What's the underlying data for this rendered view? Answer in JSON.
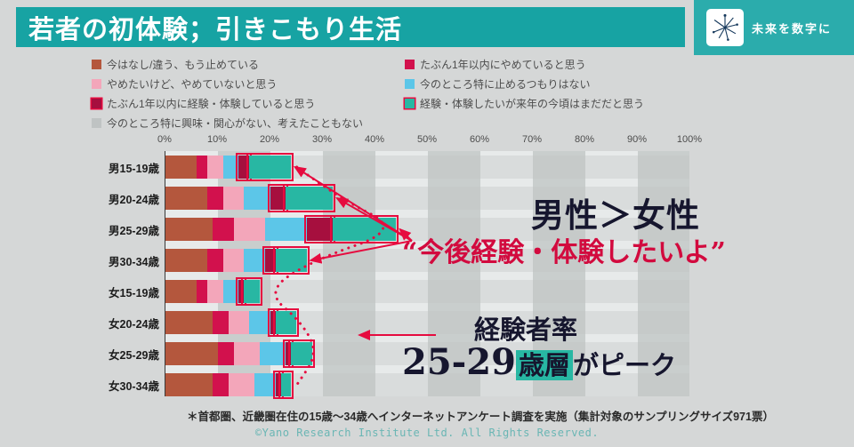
{
  "header": {
    "title": "若者の初体験；引きこもり生活"
  },
  "logo": {
    "tagline": "未来を数字に"
  },
  "annotations": {
    "male_vs_female": "男性＞女性",
    "quote": "“今後経験・体験したいよ”",
    "experience_rate": "経験者率",
    "peak_prefix": "25-29",
    "peak_highlight": "歳層",
    "peak_suffix": "がピーク"
  },
  "footer": {
    "note": "＊首都圏、近畿圏在住の15歳～34歳へインターネットアンケート調査を実施（集計対象のサンプリングサイズ971票）",
    "copyright": "©Yano Research Institute Ltd. All Rights Reserved."
  },
  "chart_data": {
    "type": "bar",
    "stacked": true,
    "orientation": "horizontal",
    "xlim": [
      0,
      100
    ],
    "x_ticks": [
      "0%",
      "10%",
      "20%",
      "30%",
      "40%",
      "50%",
      "60%",
      "70%",
      "80%",
      "90%",
      "100%"
    ],
    "categories": [
      "男15-19歳",
      "男20-24歳",
      "男25-29歳",
      "男30-34歳",
      "女15-19歳",
      "女20-24歳",
      "女25-29歳",
      "女30-34歳"
    ],
    "series": [
      {
        "name": "今はなし/違う、もう止めている",
        "color": "#b4573d",
        "values": [
          6,
          8,
          9,
          8,
          6,
          9,
          10,
          9
        ]
      },
      {
        "name": "たぶん1年以内にやめていると思う",
        "color": "#d2114d",
        "values": [
          2,
          3,
          4,
          3,
          2,
          3,
          3,
          3
        ]
      },
      {
        "name": "やめたいけど、やめていないと思う",
        "color": "#f3a6ba",
        "values": [
          3,
          4,
          6,
          4,
          3,
          4,
          5,
          5
        ]
      },
      {
        "name": "今のところ特に止めるつもりはない",
        "color": "#5cc6e8",
        "values": [
          3,
          5,
          8,
          4,
          3,
          4,
          5,
          4
        ]
      },
      {
        "name": "たぶん1年以内に経験・体験していると思う",
        "color": "#a60f3e",
        "highlighted": true,
        "values": [
          2,
          3,
          5,
          2,
          1,
          1,
          1,
          1
        ]
      },
      {
        "name": "経験・体験したいが来年の今頃はまだだと思う",
        "color": "#28b7a3",
        "highlighted": true,
        "values": [
          8,
          9,
          12,
          6,
          3,
          4,
          4,
          2
        ]
      },
      {
        "name": "今のところ特に興味・関心がない、考えたこともない",
        "color": "#bfc3c3",
        "muted": true,
        "values": [
          76,
          68,
          56,
          73,
          82,
          75,
          72,
          76
        ]
      }
    ],
    "legend_position": "top",
    "grid": "vertical-bands"
  }
}
